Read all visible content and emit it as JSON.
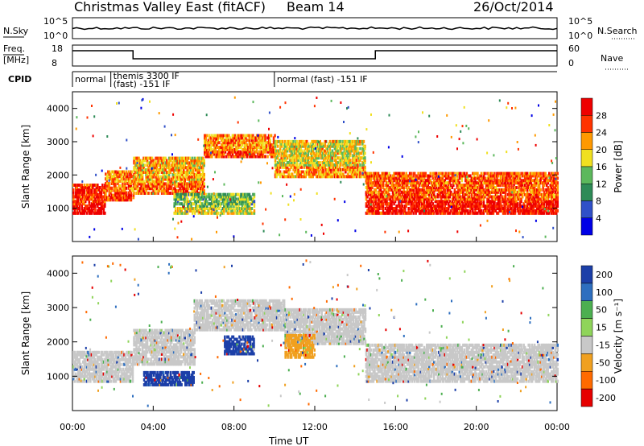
{
  "header": {
    "title": "Christmas Valley East (fitACF)",
    "beam": "Beam 14",
    "date": "26/Oct/2014"
  },
  "panels": {
    "nsky": {
      "left_label": "N.Sky",
      "right_label": "N.Search",
      "left_ticks": [
        "10^5",
        "10^0"
      ],
      "right_ticks": [
        "10^5",
        "10^0"
      ]
    },
    "freq": {
      "left_label_1": "Freq.",
      "left_label_2": "[MHz]",
      "right_label": "Nave",
      "left_ticks": [
        "18",
        "8"
      ],
      "right_ticks": [
        "60",
        "0"
      ]
    },
    "cpid": {
      "label": "CPID",
      "segments": [
        {
          "start_hour": 0.0,
          "text": "normal"
        },
        {
          "start_hour": 1.9,
          "text": "themis 3300 IF\n(fast) -151 IF"
        },
        {
          "start_hour": 10.0,
          "text": "normal (fast) -151 IF"
        }
      ]
    }
  },
  "chart_data": [
    {
      "type": "heatmap",
      "title": "Power",
      "xlabel": "Time UT",
      "ylabel": "Slant Range [km]",
      "colorbar_label": "Power [dB]",
      "xlim_hours": [
        0,
        24
      ],
      "x_ticks": [
        "00:00",
        "04:00",
        "08:00",
        "12:00",
        "16:00",
        "20:00",
        "00:00"
      ],
      "ylim": [
        0,
        4500
      ],
      "y_ticks": [
        1000,
        2000,
        3000,
        4000
      ],
      "colorbar_ticks": [
        4,
        8,
        12,
        16,
        20,
        24,
        28
      ],
      "colors": [
        "#0000e6",
        "#3050c8",
        "#2e8b57",
        "#5cb85c",
        "#f0e020",
        "#ff9900",
        "#ff3300",
        "#ee0000"
      ],
      "echo_bands": [
        {
          "t_start": 0.0,
          "t_end": 1.6,
          "r_low": 900,
          "r_high": 1800,
          "value": 26
        },
        {
          "t_start": 1.6,
          "t_end": 3.0,
          "r_low": 1300,
          "r_high": 2200,
          "value": 22
        },
        {
          "t_start": 3.0,
          "t_end": 6.5,
          "r_low": 1500,
          "r_high": 2600,
          "value": 20
        },
        {
          "t_start": 6.5,
          "t_end": 10.0,
          "r_low": 2600,
          "r_high": 3300,
          "value": 22
        },
        {
          "t_start": 10.0,
          "t_end": 14.5,
          "r_low": 2000,
          "r_high": 3100,
          "value": 18
        },
        {
          "t_start": 14.5,
          "t_end": 24.0,
          "r_low": 900,
          "r_high": 2100,
          "value": 24
        },
        {
          "t_start": 5.0,
          "t_end": 9.0,
          "r_low": 900,
          "r_high": 1500,
          "value": 14
        }
      ]
    },
    {
      "type": "heatmap",
      "title": "Velocity",
      "xlabel": "Time UT",
      "ylabel": "Slant Range [km]",
      "colorbar_label": "Velocity [m s^-1]",
      "xlim_hours": [
        0,
        24
      ],
      "x_ticks": [
        "00:00",
        "04:00",
        "08:00",
        "12:00",
        "16:00",
        "20:00",
        "00:00"
      ],
      "ylim": [
        0,
        4500
      ],
      "y_ticks": [
        1000,
        2000,
        3000,
        4000
      ],
      "colorbar_ticks": [
        "200",
        "100",
        "50",
        "15",
        "-15",
        "-50",
        "-100",
        "-200"
      ],
      "colors": [
        "#1c3fa8",
        "#2e6fbf",
        "#4caf50",
        "#8fd45a",
        "#c8c8c8",
        "#f0a020",
        "#ff6a00",
        "#e60000"
      ],
      "echo_bands": [
        {
          "t_start": 0.0,
          "t_end": 3.0,
          "r_low": 900,
          "r_high": 1800,
          "value": 0
        },
        {
          "t_start": 3.0,
          "t_end": 6.0,
          "r_low": 1400,
          "r_high": 2400,
          "value": 0
        },
        {
          "t_start": 6.0,
          "t_end": 10.5,
          "r_low": 2400,
          "r_high": 3300,
          "value": 0
        },
        {
          "t_start": 10.5,
          "t_end": 14.5,
          "r_low": 2000,
          "r_high": 3000,
          "value": 0
        },
        {
          "t_start": 14.5,
          "t_end": 24.0,
          "r_low": 900,
          "r_high": 2000,
          "value": 0
        },
        {
          "t_start": 3.5,
          "t_end": 6.0,
          "r_low": 800,
          "r_high": 1200,
          "value": 120
        },
        {
          "t_start": 7.5,
          "t_end": 9.0,
          "r_low": 1700,
          "r_high": 2200,
          "value": 180
        },
        {
          "t_start": 10.5,
          "t_end": 12.0,
          "r_low": 1600,
          "r_high": 2300,
          "value": -70
        }
      ]
    }
  ]
}
